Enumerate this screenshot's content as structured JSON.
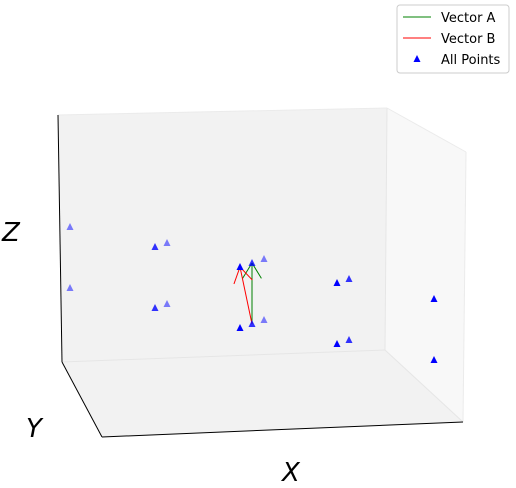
{
  "chart_data": {
    "type": "scatter",
    "subtype": "3d-scatter-with-vectors",
    "title": "",
    "xlabel": "X",
    "ylabel": "Y",
    "zlabel": "Z",
    "grid": false,
    "ticks": false,
    "legend": {
      "placement": "top-right",
      "entries": [
        {
          "label": "Vector A",
          "kind": "line",
          "color": "#008000"
        },
        {
          "label": "Vector B",
          "kind": "line",
          "color": "#ff0000"
        },
        {
          "label": "All Points",
          "kind": "marker",
          "color": "#0000ff"
        }
      ]
    },
    "points": [
      {
        "x": 0,
        "y": 0,
        "z": 0
      },
      {
        "x": 0,
        "y": 1,
        "z": 0
      },
      {
        "x": 0,
        "y": 2,
        "z": 0
      },
      {
        "x": 1,
        "y": 0,
        "z": 0
      },
      {
        "x": 1,
        "y": 1,
        "z": 0
      },
      {
        "x": 1,
        "y": 2,
        "z": 0
      },
      {
        "x": 2,
        "y": 0,
        "z": 0
      },
      {
        "x": 2,
        "y": 1,
        "z": 0
      },
      {
        "x": 2,
        "y": 2,
        "z": 0
      },
      {
        "x": 0,
        "y": 0,
        "z": 1
      },
      {
        "x": 0,
        "y": 1,
        "z": 1
      },
      {
        "x": 0,
        "y": 2,
        "z": 1
      },
      {
        "x": 1,
        "y": 0,
        "z": 1
      },
      {
        "x": 1,
        "y": 1,
        "z": 1
      },
      {
        "x": 1,
        "y": 2,
        "z": 1
      },
      {
        "x": 2,
        "y": 0,
        "z": 1
      },
      {
        "x": 2,
        "y": 1,
        "z": 1
      },
      {
        "x": 2,
        "y": 2,
        "z": 1
      }
    ],
    "vectors": [
      {
        "name": "Vector A",
        "color": "#008000",
        "from": [
          1,
          1,
          0
        ],
        "to": [
          1,
          1,
          1
        ]
      },
      {
        "name": "Vector B",
        "color": "#ff0000",
        "from": [
          1,
          1,
          0
        ],
        "to": [
          0,
          0,
          1
        ]
      }
    ]
  }
}
